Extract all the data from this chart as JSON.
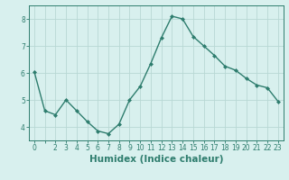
{
  "x": [
    0,
    1,
    2,
    3,
    4,
    5,
    6,
    7,
    8,
    9,
    10,
    11,
    12,
    13,
    14,
    15,
    16,
    17,
    18,
    19,
    20,
    21,
    22,
    23
  ],
  "y": [
    6.05,
    4.6,
    4.45,
    5.0,
    4.6,
    4.2,
    3.85,
    3.75,
    4.1,
    5.0,
    5.5,
    6.35,
    7.3,
    8.1,
    8.0,
    7.35,
    7.0,
    6.65,
    6.25,
    6.1,
    5.8,
    5.55,
    5.45,
    4.95
  ],
  "line_color": "#2e7d6e",
  "marker": "D",
  "marker_size": 2.0,
  "bg_color": "#d8f0ee",
  "grid_color": "#b8d8d4",
  "xlabel": "Humidex (Indice chaleur)",
  "ylim": [
    3.5,
    8.5
  ],
  "xlim": [
    -0.5,
    23.5
  ],
  "yticks": [
    4,
    5,
    6,
    7,
    8
  ],
  "xticks": [
    0,
    1,
    2,
    3,
    4,
    5,
    6,
    7,
    8,
    9,
    10,
    11,
    12,
    13,
    14,
    15,
    16,
    17,
    18,
    19,
    20,
    21,
    22,
    23
  ],
  "xtick_labels": [
    "0",
    "",
    "2",
    "3",
    "4",
    "5",
    "6",
    "7",
    "8",
    "9",
    "10",
    "11",
    "12",
    "13",
    "14",
    "15",
    "16",
    "17",
    "18",
    "19",
    "20",
    "21",
    "22",
    "23"
  ],
  "tick_label_fontsize": 5.5,
  "xlabel_fontsize": 7.5,
  "line_width": 1.0
}
